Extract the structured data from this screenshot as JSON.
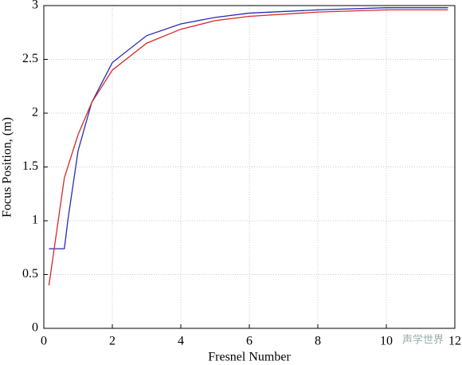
{
  "chart_data": {
    "type": "line",
    "xlabel": "Fresnel Number",
    "ylabel": "Focus Position, (m)",
    "x": [
      0.15,
      0.6,
      0.7,
      1,
      1.4,
      2,
      3,
      4,
      5,
      6,
      8,
      10,
      11.8
    ],
    "series": [
      {
        "color": "#2a2ab5",
        "values": [
          0.74,
          0.74,
          1.0,
          1.65,
          2.1,
          2.47,
          2.72,
          2.83,
          2.89,
          2.93,
          2.96,
          2.98,
          2.98
        ]
      },
      {
        "color": "#d42a2a",
        "values": [
          0.4,
          1.4,
          1.5,
          1.8,
          2.1,
          2.4,
          2.65,
          2.78,
          2.86,
          2.9,
          2.94,
          2.96,
          2.96
        ]
      }
    ],
    "xlim": [
      0,
      12
    ],
    "xticks": [
      0,
      2,
      4,
      6,
      8,
      10,
      12
    ],
    "ylim": [
      0,
      3
    ],
    "yticks": [
      0,
      0.5,
      1,
      1.5,
      2,
      2.5,
      3
    ],
    "grid": true,
    "watermark": "声学世界"
  }
}
